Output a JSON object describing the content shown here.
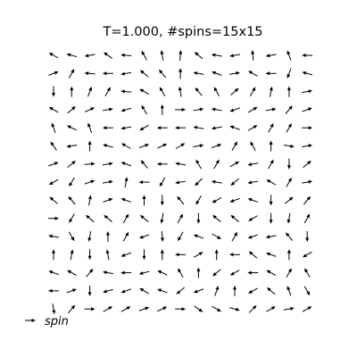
{
  "chart_data": {
    "type": "quiver",
    "title": "T=1.000, #spins=15x15",
    "legend": {
      "label": "spin",
      "placement": "bottom-left"
    },
    "grid": false,
    "axes_visible": false,
    "xlim": [
      -0.5,
      14.5
    ],
    "ylim": [
      -0.5,
      14.5
    ],
    "arrow_color": "#000000",
    "nx": 15,
    "ny": 15,
    "angles_deg_rows_top_to_bottom": [
      [
        150,
        165,
        190,
        145,
        175,
        120,
        100,
        85,
        140,
        170,
        190,
        95,
        190,
        110,
        180
      ],
      [
        20,
        60,
        175,
        180,
        190,
        140,
        130,
        90,
        170,
        160,
        10,
        150,
        180,
        250,
        165
      ],
      [
        270,
        90,
        70,
        60,
        175,
        150,
        120,
        100,
        130,
        120,
        40,
        60,
        80,
        90,
        10
      ],
      [
        150,
        40,
        25,
        10,
        195,
        120,
        90,
        0,
        10,
        170,
        200,
        30,
        10,
        50,
        20
      ],
      [
        110,
        155,
        110,
        180,
        190,
        210,
        180,
        180,
        170,
        190,
        160,
        30,
        60,
        60,
        0
      ],
      [
        125,
        190,
        90,
        165,
        150,
        20,
        25,
        30,
        10,
        20,
        60,
        120,
        90,
        350,
        10
      ],
      [
        20,
        40,
        5,
        10,
        160,
        130,
        180,
        170,
        120,
        60,
        30,
        190,
        60,
        270,
        40
      ],
      [
        210,
        240,
        20,
        10,
        80,
        180,
        240,
        190,
        225,
        170,
        220,
        190,
        150,
        60,
        10
      ],
      [
        140,
        130,
        80,
        20,
        160,
        90,
        270,
        130,
        240,
        210,
        200,
        160,
        270,
        40,
        50
      ],
      [
        0,
        240,
        140,
        140,
        60,
        140,
        260,
        60,
        270,
        140,
        140,
        210,
        270,
        260,
        60
      ],
      [
        170,
        300,
        260,
        90,
        60,
        200,
        275,
        240,
        160,
        330,
        60,
        200,
        190,
        130,
        270
      ],
      [
        90,
        80,
        270,
        100,
        200,
        270,
        90,
        180,
        30,
        90,
        180,
        140,
        160,
        90,
        210
      ],
      [
        160,
        150,
        50,
        170,
        180,
        195,
        155,
        120,
        90,
        220,
        210,
        180,
        150,
        60,
        120
      ],
      [
        180,
        20,
        270,
        195,
        200,
        150,
        160,
        220,
        200,
        70,
        90,
        210,
        140,
        110,
        300
      ],
      [
        280,
        50,
        0,
        30,
        30,
        20,
        25,
        0,
        325,
        330,
        345,
        45,
        30,
        10,
        30
      ]
    ]
  }
}
